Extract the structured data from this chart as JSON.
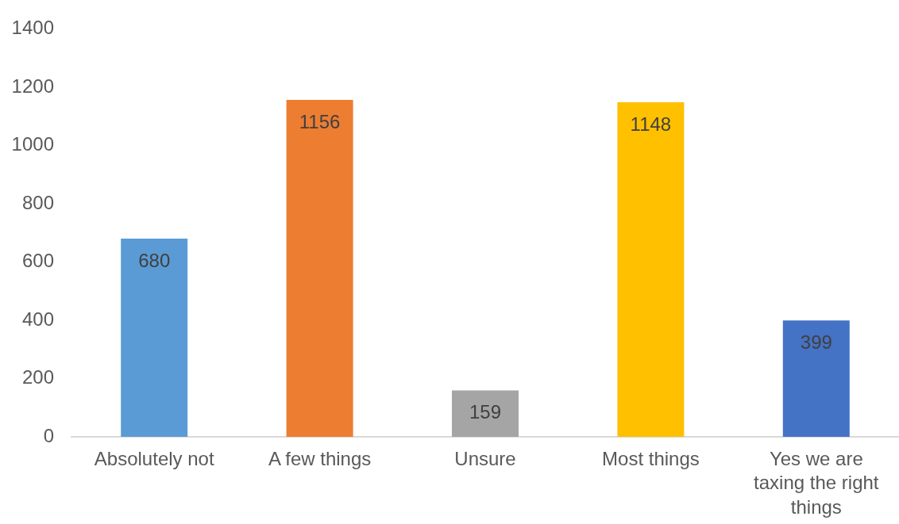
{
  "chart_data": {
    "type": "bar",
    "categories": [
      "Absolutely not",
      "A few things",
      "Unsure",
      "Most things",
      "Yes we are taxing the right things"
    ],
    "values": [
      680,
      1156,
      159,
      1148,
      399
    ],
    "colors": [
      "#5b9bd5",
      "#ed7d31",
      "#a5a5a5",
      "#ffc000",
      "#4472c4"
    ],
    "ylim": [
      0,
      1400
    ],
    "yticks": [
      0,
      200,
      400,
      600,
      800,
      1000,
      1200,
      1400
    ],
    "data_labels": true,
    "grid": false,
    "legend": false
  }
}
